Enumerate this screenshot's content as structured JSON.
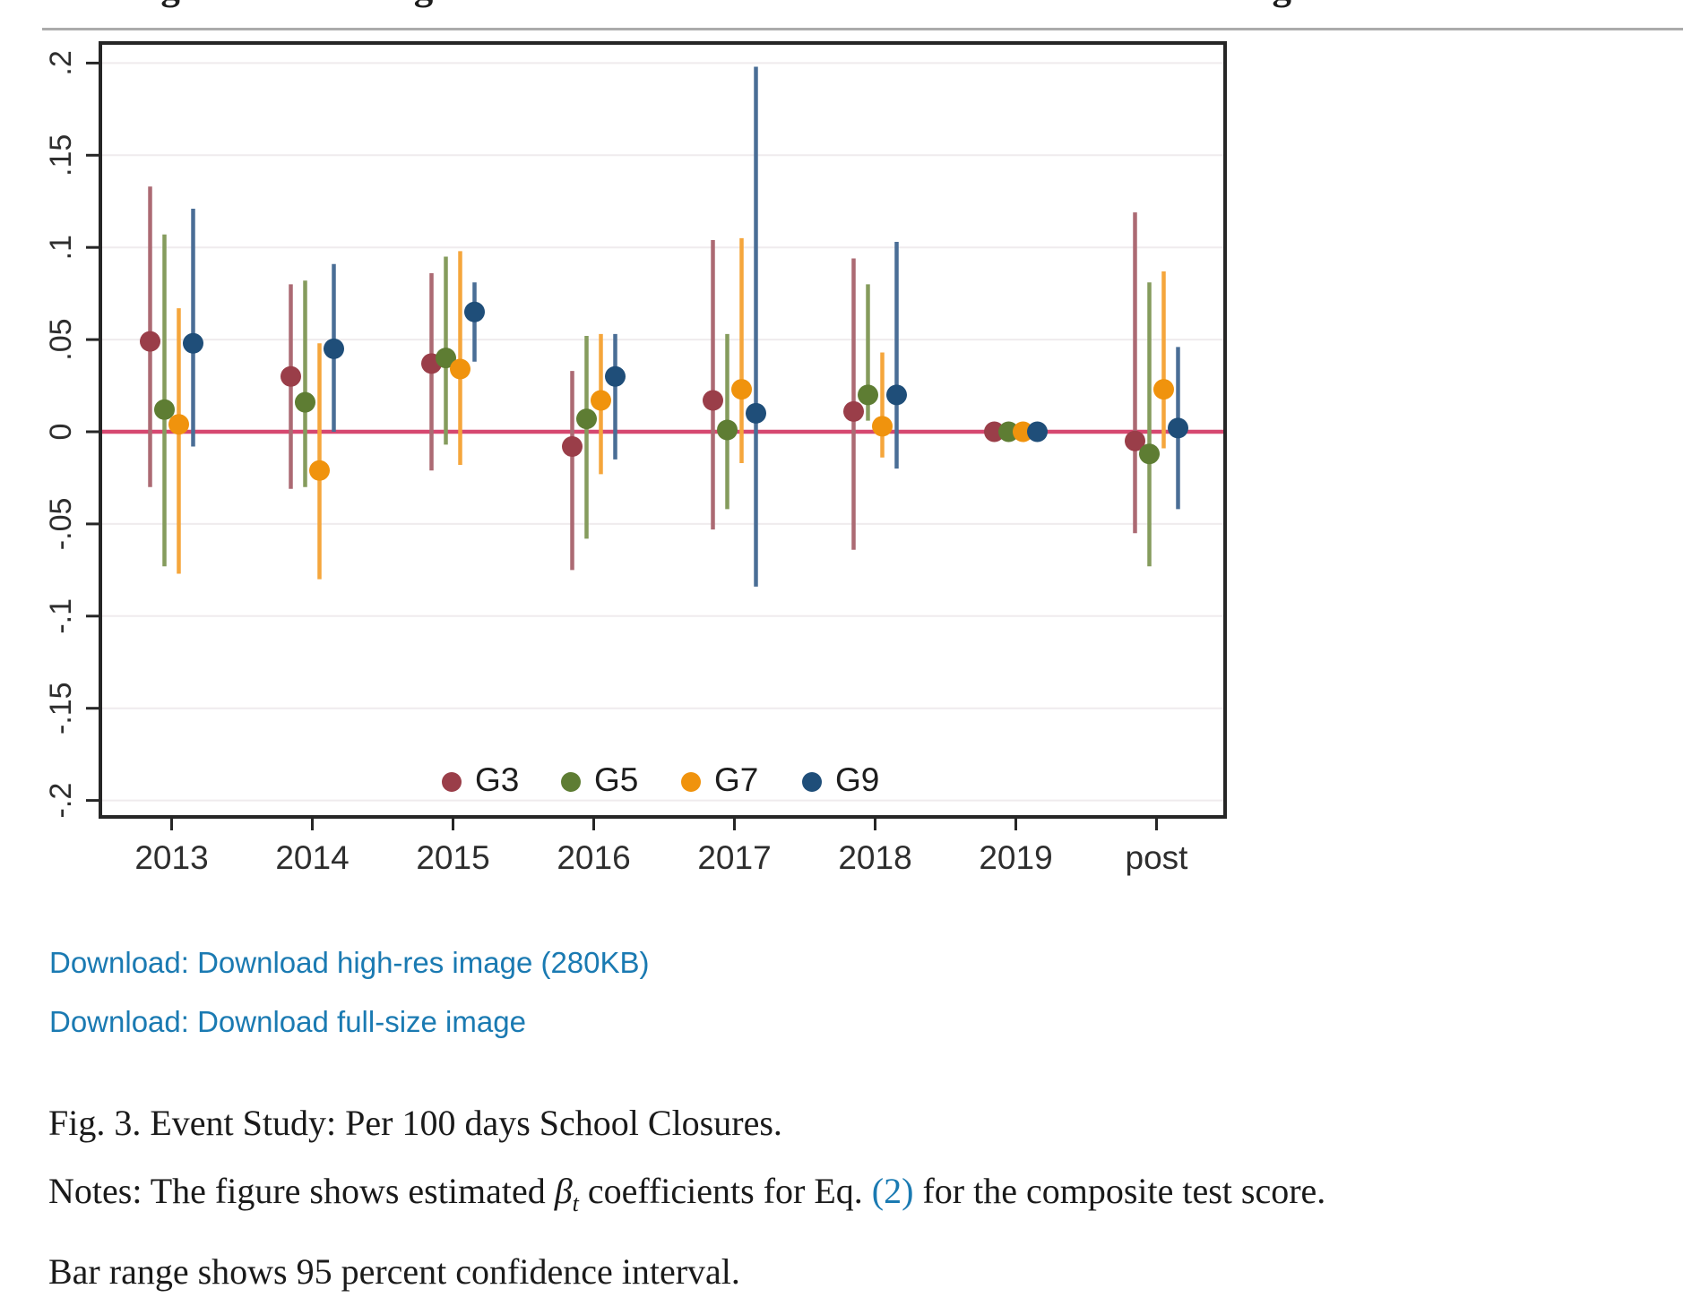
{
  "page": {
    "top_partial_text": "learning losses for indigenous students and for students from LBOTE backgrounds.",
    "download_links": {
      "high_res": "Download: Download high-res image (280KB)",
      "full_size": "Download: Download full-size image"
    },
    "caption": {
      "line1": "Fig. 3. Event Study: Per 100 days School Closures.",
      "notes_prefix": "Notes: The figure shows estimated ",
      "beta": "β",
      "beta_sub": "t",
      "notes_mid": " coefficients for Eq. ",
      "eq_link": "(2)",
      "notes_suffix": " for the composite test score.",
      "line3": "Bar range shows 95 percent confidence interval."
    },
    "link_color": "#1a7ab2"
  },
  "chart_data": {
    "type": "scatter",
    "title": "",
    "xlabel": "",
    "ylabel": "",
    "note": "Event-study point estimates with 95% confidence interval bars; 2019 is the omitted reference year (all coefficients zero).",
    "categories": [
      "2013",
      "2014",
      "2015",
      "2016",
      "2017",
      "2018",
      "2019",
      "post"
    ],
    "ylim": [
      -0.2,
      0.2
    ],
    "yticks": [
      {
        "label": ".2",
        "value": 0.2
      },
      {
        "label": ".15",
        "value": 0.15
      },
      {
        "label": ".1",
        "value": 0.1
      },
      {
        "label": ".05",
        "value": 0.05
      },
      {
        "label": "0",
        "value": 0
      },
      {
        "label": "-.05",
        "value": -0.05
      },
      {
        "label": "-.1",
        "value": -0.1
      },
      {
        "label": "-.15",
        "value": -0.15
      },
      {
        "label": "-.2",
        "value": -0.2
      }
    ],
    "grid": true,
    "legend_position": "inside-bottom-center",
    "zero_line_color": "#d64870",
    "grid_color": "#efebed",
    "border_color": "#262626",
    "tick_text_color": "#2e2e2e",
    "series": [
      {
        "name": "G3",
        "dot_color": "#9a3e49",
        "bar_color": "#ac6a73",
        "est": [
          0.049,
          0.03,
          0.037,
          -0.008,
          0.017,
          0.011,
          0.0,
          -0.005
        ],
        "ci_low": [
          -0.03,
          -0.031,
          -0.021,
          -0.075,
          -0.053,
          -0.064,
          0.0,
          -0.055
        ],
        "ci_high": [
          0.133,
          0.08,
          0.086,
          0.033,
          0.104,
          0.094,
          0.0,
          0.119
        ]
      },
      {
        "name": "G5",
        "dot_color": "#5e7d33",
        "bar_color": "#859c5d",
        "est": [
          0.012,
          0.016,
          0.04,
          0.007,
          0.001,
          0.02,
          0.0,
          -0.012
        ],
        "ci_low": [
          -0.073,
          -0.03,
          -0.007,
          -0.058,
          -0.042,
          0.006,
          0.0,
          -0.073
        ],
        "ci_high": [
          0.107,
          0.082,
          0.095,
          0.052,
          0.053,
          0.08,
          0.0,
          0.081
        ]
      },
      {
        "name": "G7",
        "dot_color": "#f0930d",
        "bar_color": "#f5a63c",
        "est": [
          0.004,
          -0.021,
          0.034,
          0.017,
          0.023,
          0.003,
          0.0,
          0.023
        ],
        "ci_low": [
          -0.077,
          -0.08,
          -0.018,
          -0.023,
          -0.017,
          -0.014,
          0.0,
          -0.009
        ],
        "ci_high": [
          0.067,
          0.048,
          0.098,
          0.053,
          0.105,
          0.043,
          0.0,
          0.087
        ]
      },
      {
        "name": "G9",
        "dot_color": "#1f4e79",
        "bar_color": "#4a6e96",
        "est": [
          0.048,
          0.045,
          0.065,
          0.03,
          0.01,
          0.02,
          0.0,
          0.002
        ],
        "ci_low": [
          -0.008,
          0.0,
          0.038,
          -0.015,
          -0.084,
          -0.02,
          0.0,
          -0.042
        ],
        "ci_high": [
          0.121,
          0.091,
          0.081,
          0.053,
          0.198,
          0.103,
          0.0,
          0.046
        ]
      }
    ]
  }
}
